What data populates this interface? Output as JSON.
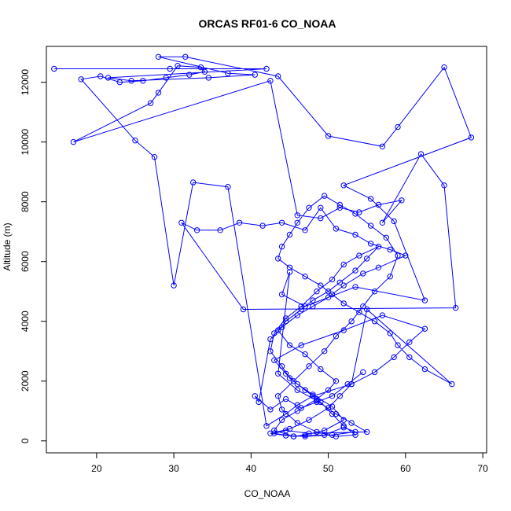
{
  "chart_data": {
    "type": "line",
    "title": "ORCAS RF01-6 CO_NOAA",
    "xlabel": "CO_NOAA",
    "ylabel": "Altitude (m)",
    "xlim": [
      13.5,
      70.5
    ],
    "ylim": [
      -400,
      13200
    ],
    "xticks": [
      20,
      30,
      40,
      50,
      60,
      70
    ],
    "yticks": [
      0,
      2000,
      4000,
      6000,
      8000,
      10000,
      12000
    ],
    "grid": false,
    "series": [
      {
        "color": "#0000ff",
        "marker": "open-circle",
        "x": [
          14.5,
          29.5,
          42.0,
          21.5,
          24.5,
          34.5,
          40.5,
          37.0,
          28.0,
          31.5,
          43.5,
          50.0,
          57.0,
          59.0,
          65.0,
          68.5,
          52.0,
          55.5,
          58.5,
          62.5,
          53.5,
          47.0,
          44.0,
          45.0,
          43.5,
          46.0,
          48.5,
          51.0,
          53.0,
          55.0,
          47.5,
          44.5,
          43.0,
          45.5,
          49.5,
          52.0,
          53.5,
          50.5,
          47.0,
          44.5,
          42.5,
          45.0,
          47.5,
          50.0,
          51.5,
          53.0,
          56.0,
          58.5,
          60.5,
          62.5,
          57.0,
          52.0,
          46.5,
          43.0,
          44.5,
          46.0,
          48.0,
          50.5,
          52.0,
          49.5,
          47.0,
          45.5,
          43.0,
          44.0,
          46.0,
          48.5,
          50.0,
          51.0,
          49.0,
          47.0,
          45.0,
          43.5,
          44.5,
          46.5,
          48.0,
          50.0,
          51.5,
          53.5,
          55.0,
          56.5,
          54.0,
          52.0,
          50.5,
          48.5,
          46.5,
          44.5,
          43.0,
          42.5,
          44.0,
          45.0,
          47.0,
          49.0,
          50.5,
          52.0,
          53.5,
          51.0,
          48.5,
          46.0,
          44.0,
          43.5,
          45.5,
          47.5,
          49.5,
          51.0,
          53.0,
          54.5,
          56.0,
          58.0,
          59.0,
          57.5,
          55.5,
          53.5,
          51.5,
          49.5,
          47.5,
          46.0,
          45.0,
          44.0,
          43.5,
          45.0,
          47.0,
          49.0,
          50.5,
          52.0,
          54.0,
          56.0,
          58.0,
          59.0,
          60.5,
          62.5,
          66.0,
          55.0,
          53.0,
          48.0,
          46.0,
          44.5,
          42.0,
          37.0,
          32.5,
          30.0,
          27.5,
          25.0,
          18.0,
          20.5,
          23.0,
          26.0,
          29.0,
          32.0,
          34.0,
          33.5,
          30.5,
          28.0,
          27.0,
          17.0,
          42.5,
          46.0,
          49.0,
          51.5,
          54.0,
          56.5,
          59.5,
          57.0,
          62.0,
          65.0,
          66.5,
          39.0,
          31.0,
          33.0,
          36.0,
          38.5,
          41.5,
          44.0,
          47.0,
          49.0,
          51.0,
          53.5,
          55.5,
          58.0,
          60.0,
          56.5,
          54.5,
          52.0,
          50.0,
          48.0,
          46.0,
          44.0,
          42.5,
          41.0,
          40.5,
          42.5,
          44.5,
          46.5,
          48.5,
          50.5,
          52.5,
          54.5
        ],
        "y": [
          12450,
          12450,
          12450,
          12150,
          12050,
          12150,
          12250,
          12300,
          12850,
          12850,
          12200,
          10200,
          9850,
          10500,
          12500,
          10150,
          8550,
          8100,
          7350,
          4700,
          5150,
          4500,
          4900,
          5650,
          2250,
          1700,
          1350,
          900,
          600,
          300,
          250,
          350,
          250,
          150,
          200,
          450,
          300,
          200,
          150,
          180,
          250,
          400,
          700,
          1100,
          1500,
          1900,
          2300,
          2800,
          3300,
          3750,
          4200,
          3700,
          3200,
          2700,
          2250,
          1900,
          1550,
          1150,
          700,
          350,
          200,
          150,
          350,
          700,
          1000,
          1400,
          1700,
          2000,
          2400,
          2900,
          3200,
          3700,
          4000,
          4400,
          4700,
          5000,
          5300,
          5700,
          6100,
          6500,
          6200,
          5900,
          5400,
          5000,
          4500,
          4100,
          3600,
          3000,
          2500,
          2100,
          1700,
          1300,
          900,
          500,
          200,
          150,
          300,
          600,
          1050,
          1500,
          2000,
          2500,
          3000,
          3500,
          4000,
          4500,
          5000,
          5500,
          6200,
          6800,
          7200,
          7600,
          7900,
          8200,
          7800,
          7300,
          6900,
          6500,
          6100,
          5800,
          5500,
          5200,
          4900,
          4600,
          4300,
          4000,
          3600,
          3200,
          2800,
          2400,
          1900,
          4400,
          1900,
          1500,
          1200,
          900,
          500,
          8500,
          8650,
          5200,
          9500,
          10050,
          12100,
          12200,
          12000,
          12050,
          12150,
          12250,
          12350,
          12500,
          12550,
          11650,
          11300,
          10000,
          12050,
          7550,
          7450,
          7800,
          7650,
          7900,
          8050,
          7300,
          9600,
          8550,
          4450,
          4400,
          7300,
          7050,
          7050,
          7300,
          7200,
          7300,
          7050,
          7800,
          7100,
          6900,
          6600,
          6400,
          6200,
          5800,
          5600,
          5200,
          4800,
          4500,
          4200,
          3800,
          3400,
          1300,
          1500,
          1050,
          1400,
          1100,
          1300,
          1500,
          1900,
          2300
        ]
      }
    ]
  }
}
